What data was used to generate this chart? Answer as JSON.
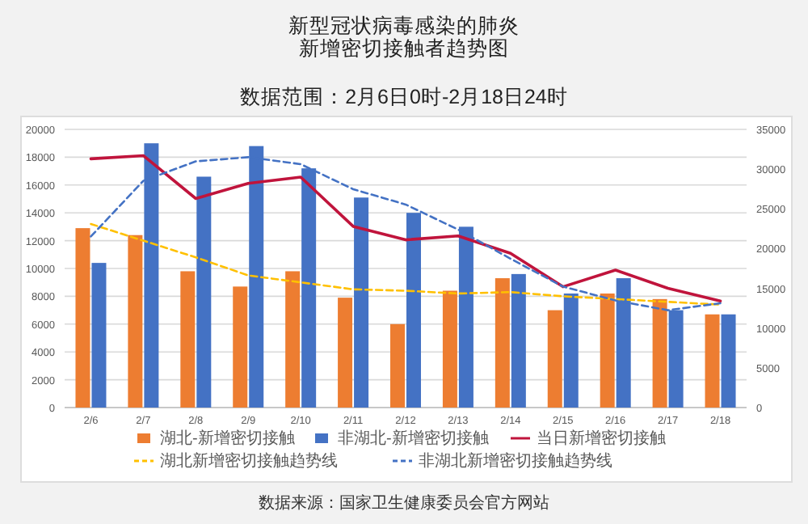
{
  "chart_data": {
    "type": "bar",
    "title": "新型冠状病毒感染的肺炎",
    "subtitle": "新增密切接触者趋势图",
    "categories": [
      "2/6",
      "2/7",
      "2/8",
      "2/9",
      "2/10",
      "2/11",
      "2/12",
      "2/13",
      "2/14",
      "2/15",
      "2/16",
      "2/17",
      "2/18"
    ],
    "series": [
      {
        "name": "湖北-新增密切接触",
        "color": "#ed7d31",
        "values": [
          12900,
          12400,
          9800,
          8700,
          9800,
          7900,
          6000,
          8400,
          9300,
          7000,
          8200,
          7800,
          6700
        ]
      },
      {
        "name": "非湖北-新增密切接触",
        "color": "#4472c4",
        "values": [
          10400,
          19000,
          16600,
          18800,
          17200,
          15100,
          14000,
          13000,
          9600,
          8200,
          9300,
          7000,
          6700
        ]
      },
      {
        "name": "当日新增密切接触",
        "type": "line",
        "axis": "y2",
        "color": "#c0143c",
        "line_style": "solid",
        "values": [
          31300,
          31700,
          26300,
          28200,
          29000,
          22800,
          21100,
          21600,
          19400,
          15200,
          17300,
          15000,
          13400
        ]
      },
      {
        "name": "湖北新增密切接触趋势线",
        "type": "line",
        "color": "#ffc000",
        "line_style": "dashed",
        "values": [
          13200,
          12000,
          10800,
          9500,
          9000,
          8500,
          8400,
          8200,
          8300,
          8000,
          7800,
          7600,
          7400
        ]
      },
      {
        "name": "非湖北新增密切接触趋势线",
        "type": "line",
        "color": "#4472c4",
        "line_style": "dashed",
        "values": [
          12300,
          16300,
          17700,
          18000,
          17500,
          15700,
          14600,
          12800,
          10700,
          8700,
          7700,
          7000,
          7500
        ]
      }
    ],
    "ylim": [
      0,
      20000
    ],
    "yticks": [
      0,
      2000,
      4000,
      6000,
      8000,
      10000,
      12000,
      14000,
      16000,
      18000,
      20000
    ],
    "y2lim": [
      0,
      35000
    ],
    "y2ticks": [
      0,
      5000,
      10000,
      15000,
      20000,
      25000,
      30000,
      35000
    ],
    "grid": "y",
    "legend": "bottom",
    "marker": "none",
    "annotations": [
      "数据范围：2月6日0时-2月18日24时",
      "数据来源：国家卫生健康委员会官方网站"
    ]
  }
}
